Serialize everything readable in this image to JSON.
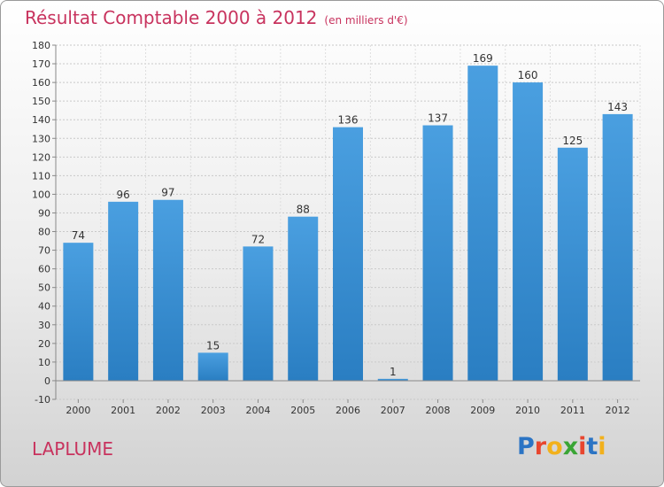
{
  "header": {
    "title": "Résultat Comptable 2000 à 2012",
    "subtitle": "(en milliers d'€)"
  },
  "commune": "LAPLUME",
  "logo": {
    "letters": [
      "P",
      "r",
      "o",
      "x",
      "i",
      "t",
      "i"
    ],
    "colors": [
      "#2b74c4",
      "#e8462e",
      "#f2b11c",
      "#3aa535",
      "#e8462e",
      "#2b74c4",
      "#f2b11c"
    ]
  },
  "colors": {
    "bar": "#4a9fe0",
    "bar_dark": "#2a7ec2",
    "title": "#c8335e"
  },
  "chart_data": {
    "type": "bar",
    "categories": [
      "2000",
      "2001",
      "2002",
      "2003",
      "2004",
      "2005",
      "2006",
      "2007",
      "2008",
      "2009",
      "2010",
      "2011",
      "2012"
    ],
    "values": [
      74,
      96,
      97,
      15,
      72,
      88,
      136,
      1,
      137,
      169,
      160,
      125,
      143
    ],
    "ylim": [
      -10,
      180
    ],
    "yticks": [
      -10,
      0,
      10,
      20,
      30,
      40,
      50,
      60,
      70,
      80,
      90,
      100,
      110,
      120,
      130,
      140,
      150,
      160,
      170,
      180
    ],
    "grid": true
  }
}
